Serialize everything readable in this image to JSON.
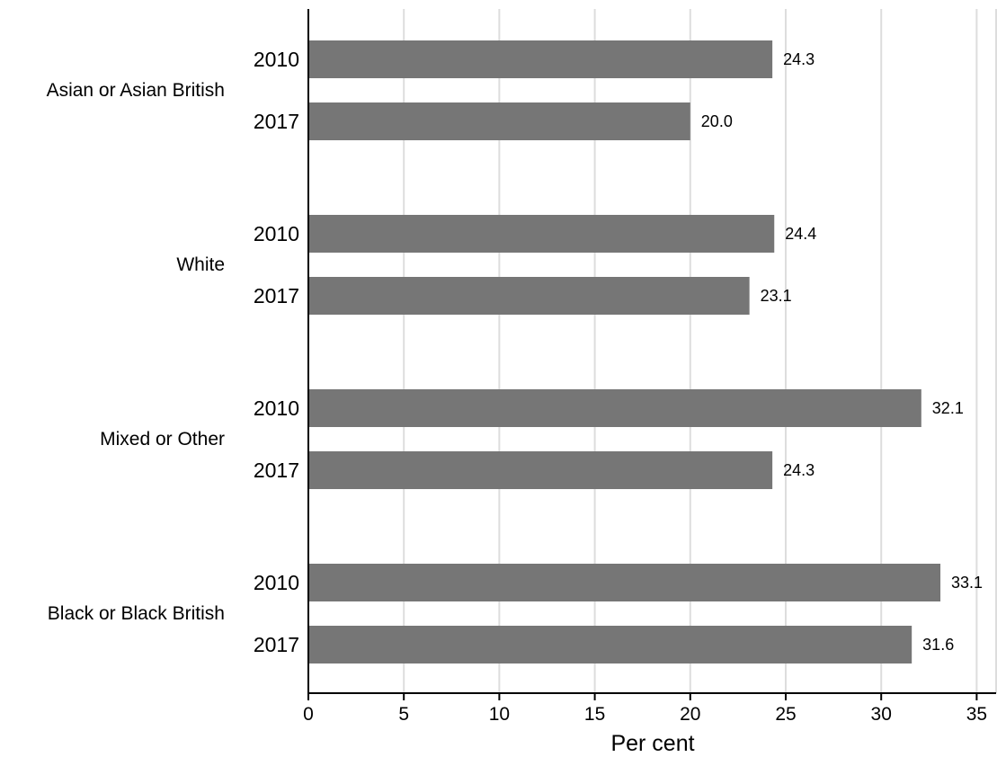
{
  "chart_data": {
    "type": "bar",
    "orientation": "horizontal",
    "xlabel": "Per cent",
    "xlim": [
      0,
      36
    ],
    "xticks": [
      0,
      5,
      10,
      15,
      20,
      25,
      30,
      35
    ],
    "grid": true,
    "groups": [
      {
        "label": "Asian or Asian British",
        "bars": [
          {
            "year": "2010",
            "value": 24.3,
            "value_label": "24.3"
          },
          {
            "year": "2017",
            "value": 20.0,
            "value_label": "20.0"
          }
        ]
      },
      {
        "label": "White",
        "bars": [
          {
            "year": "2010",
            "value": 24.4,
            "value_label": "24.4"
          },
          {
            "year": "2017",
            "value": 23.1,
            "value_label": "23.1"
          }
        ]
      },
      {
        "label": "Mixed or Other",
        "bars": [
          {
            "year": "2010",
            "value": 32.1,
            "value_label": "32.1"
          },
          {
            "year": "2017",
            "value": 24.3,
            "value_label": "24.3"
          }
        ]
      },
      {
        "label": "Black or Black British",
        "bars": [
          {
            "year": "2010",
            "value": 33.1,
            "value_label": "33.1"
          },
          {
            "year": "2017",
            "value": 31.6,
            "value_label": "31.6"
          }
        ]
      }
    ],
    "colors": {
      "bar": "#767676",
      "grid": "#dddddd",
      "axis": "#000000"
    }
  }
}
